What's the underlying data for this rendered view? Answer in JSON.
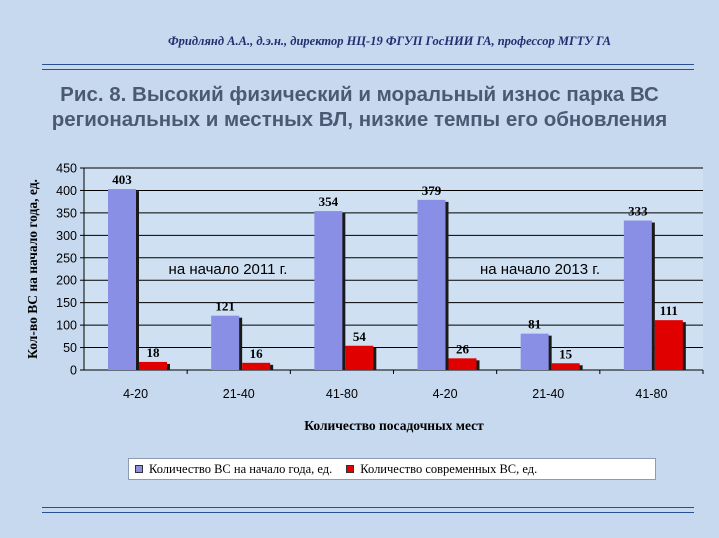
{
  "header": {
    "author": "Фридлянд А.А., д.э.н., директор  НЦ-19 ФГУП ГосНИИ ГА, профессор МГТУ ГА",
    "title_line1": "Рис. 8. Высокий физический и моральный  износ парка ВС",
    "title_line2": "региональных и местных ВЛ, низкие темпы его обновления"
  },
  "chart_data": {
    "type": "bar",
    "categories": [
      "4-20",
      "21-40",
      "41-80",
      "4-20",
      "21-40",
      "41-80"
    ],
    "series": [
      {
        "name": "Количество ВС на начало года,  ед.",
        "values": [
          403,
          121,
          354,
          379,
          81,
          333
        ],
        "color": "#8a8fe6"
      },
      {
        "name": "Количество современных ВС,  ед.",
        "values": [
          18,
          16,
          54,
          26,
          15,
          111
        ],
        "color": "#e00000"
      }
    ],
    "xlabel": "Количество посадочных мест",
    "ylabel": "Кол-во ВС на начало года, ед.",
    "ylim": [
      0,
      450
    ],
    "yticks": [
      0,
      50,
      100,
      150,
      200,
      250,
      300,
      350,
      400,
      450
    ],
    "grid": true,
    "legend": "bottom",
    "annotations": [
      "на начало 2011 г.",
      "на начало 2013 г."
    ]
  }
}
